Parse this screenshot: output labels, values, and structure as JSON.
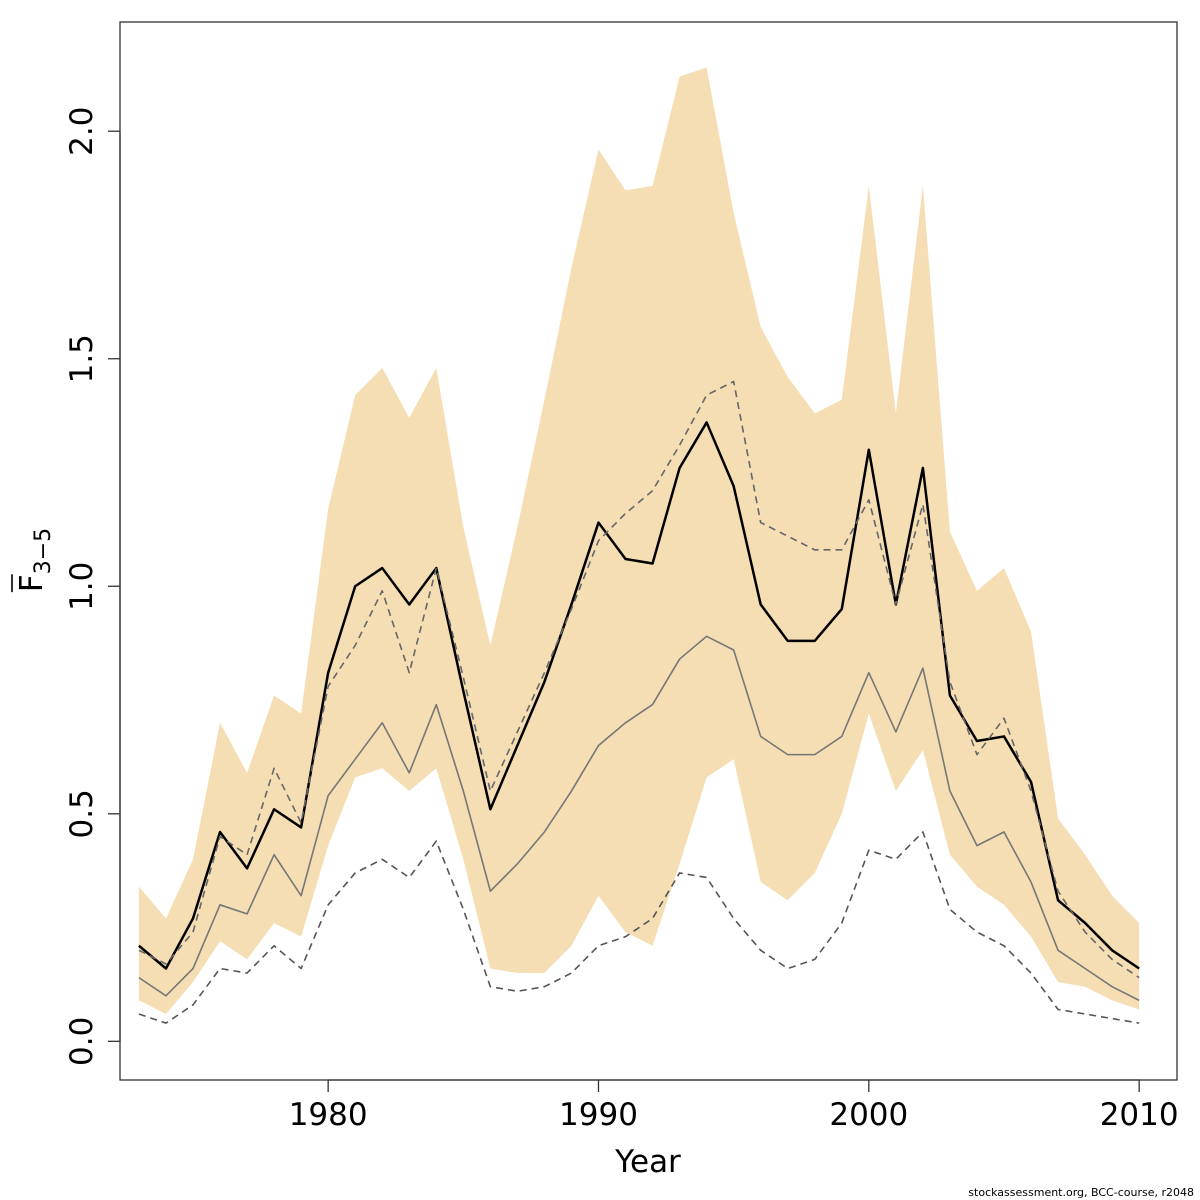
{
  "chart_data": {
    "type": "line",
    "xlabel": "Year",
    "ylabel": {
      "main": "F",
      "subscript": "3−5"
    },
    "credit": "stockassessment.org, BCC-course, r2048",
    "xlim": [
      1972.3,
      2011.4
    ],
    "ylim": [
      -0.085,
      2.24
    ],
    "x_ticks": [
      1980,
      1990,
      2000,
      2010
    ],
    "x_tick_labels": [
      "1980",
      "1990",
      "2000",
      "2010"
    ],
    "y_ticks": [
      0.0,
      0.5,
      1.0,
      1.5,
      2.0
    ],
    "y_tick_labels": [
      "0.0",
      "0.5",
      "1.0",
      "1.5",
      "2.0"
    ],
    "grid": false,
    "legend": "none",
    "x": [
      1973,
      1974,
      1975,
      1976,
      1977,
      1978,
      1979,
      1980,
      1981,
      1982,
      1983,
      1984,
      1985,
      1986,
      1987,
      1988,
      1989,
      1990,
      1991,
      1992,
      1993,
      1994,
      1995,
      1996,
      1997,
      1998,
      1999,
      2000,
      2001,
      2002,
      2003,
      2004,
      2005,
      2006,
      2007,
      2008,
      2009,
      2010
    ],
    "band": {
      "color": "#f5deb3",
      "upper": [
        0.34,
        0.27,
        0.4,
        0.7,
        0.59,
        0.76,
        0.72,
        1.17,
        1.42,
        1.48,
        1.37,
        1.48,
        1.13,
        0.87,
        1.13,
        1.41,
        1.7,
        1.96,
        1.87,
        1.88,
        2.12,
        2.14,
        1.82,
        1.57,
        1.46,
        1.38,
        1.41,
        1.88,
        1.38,
        1.88,
        1.12,
        0.99,
        1.04,
        0.9,
        0.49,
        0.41,
        0.32,
        0.26
      ],
      "lower": [
        0.09,
        0.06,
        0.13,
        0.22,
        0.18,
        0.26,
        0.23,
        0.43,
        0.58,
        0.6,
        0.55,
        0.6,
        0.4,
        0.16,
        0.15,
        0.15,
        0.21,
        0.32,
        0.24,
        0.21,
        0.39,
        0.58,
        0.62,
        0.35,
        0.31,
        0.37,
        0.5,
        0.72,
        0.55,
        0.64,
        0.41,
        0.34,
        0.3,
        0.23,
        0.13,
        0.12,
        0.09,
        0.07
      ]
    },
    "series": [
      {
        "values": [
          0.21,
          0.16,
          0.27,
          0.46,
          0.38,
          0.51,
          0.47,
          0.81,
          1.0,
          1.04,
          0.96,
          1.04,
          0.77,
          0.51,
          0.65,
          0.79,
          0.96,
          1.14,
          1.06,
          1.05,
          1.26,
          1.36,
          1.22,
          0.96,
          0.88,
          0.88,
          0.95,
          1.3,
          0.96,
          1.26,
          0.76,
          0.66,
          0.67,
          0.57,
          0.31,
          0.26,
          0.2,
          0.16
        ],
        "color": "#000000",
        "style": "solid",
        "width": 2.5
      },
      {
        "values": [
          0.14,
          0.1,
          0.16,
          0.3,
          0.28,
          0.41,
          0.32,
          0.54,
          0.62,
          0.7,
          0.59,
          0.74,
          0.55,
          0.33,
          0.39,
          0.46,
          0.55,
          0.65,
          0.7,
          0.74,
          0.84,
          0.89,
          0.86,
          0.67,
          0.63,
          0.63,
          0.67,
          0.81,
          0.68,
          0.82,
          0.55,
          0.43,
          0.46,
          0.35,
          0.2,
          0.16,
          0.12,
          0.09
        ],
        "color": "#777777",
        "style": "solid",
        "width": 1.6
      },
      {
        "values": [
          0.2,
          0.17,
          0.24,
          0.45,
          0.41,
          0.6,
          0.48,
          0.78,
          0.87,
          0.99,
          0.81,
          1.04,
          0.8,
          0.55,
          0.68,
          0.81,
          0.95,
          1.1,
          1.16,
          1.21,
          1.31,
          1.42,
          1.45,
          1.14,
          1.11,
          1.08,
          1.08,
          1.19,
          0.96,
          1.18,
          0.79,
          0.63,
          0.71,
          0.55,
          0.33,
          0.24,
          0.18,
          0.14
        ],
        "color": "#666666",
        "style": "dashed",
        "width": 1.6
      },
      {
        "values": [
          0.06,
          0.04,
          0.08,
          0.16,
          0.15,
          0.21,
          0.16,
          0.3,
          0.37,
          0.4,
          0.36,
          0.44,
          0.29,
          0.12,
          0.11,
          0.12,
          0.15,
          0.21,
          0.23,
          0.27,
          0.37,
          0.36,
          0.27,
          0.2,
          0.16,
          0.18,
          0.26,
          0.42,
          0.4,
          0.46,
          0.29,
          0.24,
          0.21,
          0.15,
          0.07,
          0.06,
          0.05,
          0.04
        ],
        "color": "#555555",
        "style": "dashed",
        "width": 1.6
      }
    ]
  }
}
